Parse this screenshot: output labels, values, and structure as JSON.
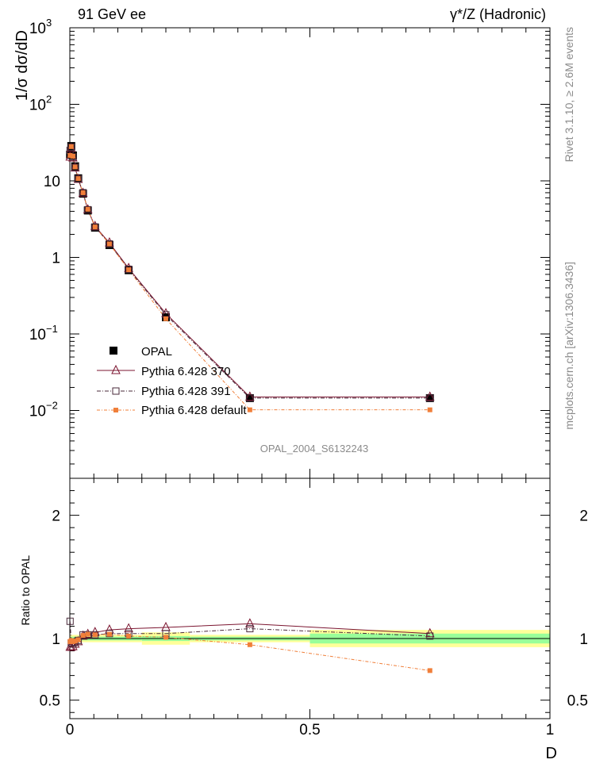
{
  "header": {
    "left": "91 GeV ee",
    "right": "γ*/Z (Hadronic)"
  },
  "side": {
    "rivet": "Rivet 3.1.10, ≥ 2.6M events",
    "mcplots": "mcplots.cern.ch [arXiv:1306.3436]"
  },
  "watermark": "OPAL_2004_S6132243",
  "colors": {
    "data": "#000000",
    "p370": "#7b1530",
    "p391": "#4a2a3a",
    "pdef": "#f07f3a",
    "band_inner": "#99ff99",
    "band_outer": "#ffff99"
  },
  "chart_data": [
    {
      "type": "line",
      "panel": "main",
      "ylabel": "1/σ dσ/dD",
      "yscale": "log",
      "xlim": [
        0,
        1
      ],
      "ylim": [
        0.0013,
        1000
      ],
      "yticks": [
        {
          "value": 1000,
          "label": "10",
          "sup": "3"
        },
        {
          "value": 100,
          "label": "10",
          "sup": "2"
        },
        {
          "value": 10,
          "label": "10",
          "sup": ""
        },
        {
          "value": 1,
          "label": "1",
          "sup": ""
        },
        {
          "value": 0.1,
          "label": "10",
          "sup": "−1"
        },
        {
          "value": 0.01,
          "label": "10",
          "sup": "−2"
        }
      ],
      "x": [
        0.0005,
        0.003,
        0.0065,
        0.011,
        0.0175,
        0.0275,
        0.0375,
        0.0525,
        0.0825,
        0.1225,
        0.2,
        0.375,
        0.75
      ],
      "series": [
        {
          "name": "OPAL",
          "values": [
            22,
            28.5,
            21.5,
            15.5,
            10.8,
            6.8,
            4.1,
            2.45,
            1.45,
            0.68,
            0.165,
            0.0145,
            0.0145
          ],
          "marker": "filled-square"
        },
        {
          "name": "Pythia 6.428 370",
          "values": [
            20.5,
            26.5,
            20,
            14.8,
            10.5,
            6.9,
            4.2,
            2.55,
            1.55,
            0.72,
            0.185,
            0.015,
            0.015
          ],
          "marker": "open-triangle"
        },
        {
          "name": "Pythia 6.428 391",
          "values": [
            25,
            27.5,
            20.5,
            15,
            10.6,
            7.0,
            4.2,
            2.5,
            1.5,
            0.7,
            0.178,
            0.0145,
            0.0145
          ],
          "marker": "open-square"
        },
        {
          "name": "Pythia 6.428 default",
          "values": [
            21.5,
            28,
            21,
            15.2,
            10.7,
            7.0,
            4.25,
            2.5,
            1.5,
            0.69,
            0.158,
            0.0102,
            0.0102
          ],
          "marker": "filled-square-small"
        }
      ],
      "legend": [
        "OPAL",
        "Pythia 6.428 370",
        "Pythia 6.428 391",
        "Pythia 6.428 default"
      ]
    },
    {
      "type": "line",
      "panel": "ratio",
      "ylabel": "Ratio to OPAL",
      "xlabel": "D",
      "xlim": [
        0,
        1
      ],
      "ylim": [
        0.35,
        2.3
      ],
      "yticks": [
        {
          "value": 0.5,
          "label": "0.5"
        },
        {
          "value": 1,
          "label": "1"
        },
        {
          "value": 2,
          "label": "2"
        }
      ],
      "xticks": [
        {
          "value": 0,
          "label": "0"
        },
        {
          "value": 0.5,
          "label": "0.5"
        },
        {
          "value": 1,
          "label": "1"
        }
      ],
      "x": [
        0.0005,
        0.003,
        0.0065,
        0.011,
        0.0175,
        0.0275,
        0.0375,
        0.0525,
        0.0825,
        0.1225,
        0.2,
        0.375,
        0.75
      ],
      "bands": [
        {
          "x0": 0.0,
          "x1": 0.15,
          "inner": [
            0.985,
            1.015
          ],
          "outer": [
            0.97,
            1.03
          ]
        },
        {
          "x0": 0.15,
          "x1": 0.25,
          "inner": [
            0.98,
            1.02
          ],
          "outer": [
            0.95,
            1.05
          ]
        },
        {
          "x0": 0.25,
          "x1": 0.5,
          "inner": [
            0.985,
            1.015
          ],
          "outer": [
            0.97,
            1.03
          ]
        },
        {
          "x0": 0.5,
          "x1": 1.0,
          "inner": [
            0.96,
            1.04
          ],
          "outer": [
            0.93,
            1.07
          ]
        }
      ],
      "series": [
        {
          "name": "Pythia 6.428 370",
          "values": [
            0.93,
            0.93,
            0.935,
            0.955,
            0.975,
            1.02,
            1.035,
            1.05,
            1.07,
            1.08,
            1.09,
            1.12,
            1.04
          ]
        },
        {
          "name": "Pythia 6.428 391",
          "values": [
            1.14,
            0.965,
            0.955,
            0.97,
            0.985,
            1.03,
            1.03,
            1.03,
            1.04,
            1.04,
            1.04,
            1.08,
            1.02
          ]
        },
        {
          "name": "Pythia 6.428 default",
          "values": [
            0.975,
            0.985,
            0.975,
            0.98,
            0.99,
            1.025,
            1.035,
            1.03,
            1.035,
            1.02,
            1.01,
            0.95,
            0.74
          ]
        }
      ]
    }
  ]
}
